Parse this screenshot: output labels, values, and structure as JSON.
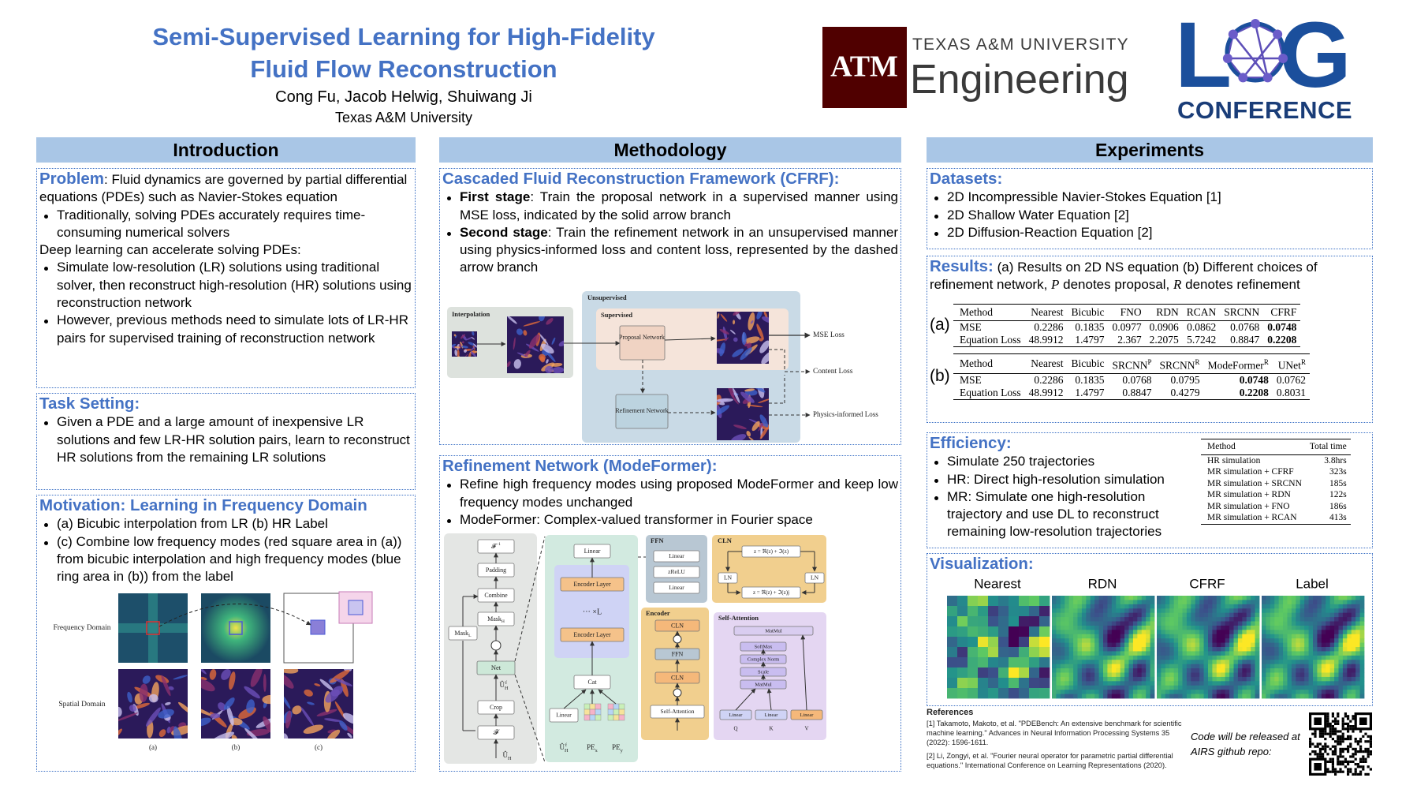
{
  "header": {
    "title": [
      "Semi-Supervised Learning for High-Fidelity",
      "Fluid Flow Reconstruction"
    ],
    "authors": "Cong Fu, Jacob Helwig, Shuiwang Ji",
    "affiliation": "Texas A&M University",
    "tamu_logo": {
      "mark": "ATM",
      "line1": "TEXAS A&M UNIVERSITY",
      "line2": "Engineering"
    },
    "log_logo": {
      "letters": [
        "L",
        "G"
      ],
      "sub": "CONFERENCE"
    }
  },
  "columns": [
    {
      "title": "Introduction",
      "boxes": [
        {
          "heading": "Problem",
          "lead": ": Fluid dynamics are governed by partial differential equations (PDEs) such as Navier-Stokes equation",
          "lines": [
            {
              "kind": "li",
              "text": "Traditionally, solving PDEs accurately requires time-consuming numerical solvers"
            },
            {
              "kind": "p",
              "text": "Deep learning can accelerate solving PDEs:"
            },
            {
              "kind": "li",
              "text": "Simulate low-resolution (LR) solutions using traditional solver, then reconstruct high-resolution (HR) solutions using reconstruction network"
            },
            {
              "kind": "li",
              "text": "However, previous methods need to simulate lots of LR-HR pairs for supervised training of reconstruction network"
            }
          ]
        },
        {
          "heading": "Task Setting:",
          "lines": [
            {
              "kind": "li",
              "text": "Given a PDE and a large amount of inexpensive LR solutions and few LR-HR solution pairs, learn to reconstruct HR solutions from the remaining LR solutions"
            }
          ]
        },
        {
          "heading": "Motivation: Learning in Frequency Domain",
          "lines": [
            {
              "kind": "li",
              "text": "(a) Bicubic interpolation from LR  (b) HR Label"
            },
            {
              "kind": "li",
              "text": "(c) Combine low frequency modes (red square area in (a)) from bicubic interpolation and high frequency modes (blue ring area in (b)) from the label"
            }
          ],
          "figure": {
            "kind": "motivation",
            "frequency": "Frequency Domain",
            "spatial": "Spatial Domain",
            "captions": [
              "(a)",
              "(b)",
              "(c)"
            ]
          }
        }
      ]
    },
    {
      "title": "Methodology",
      "boxes": [
        {
          "heading": "Cascaded Fluid Reconstruction Framework (CFRF):",
          "lines": [
            {
              "kind": "li",
              "bold": "First stage",
              "text": ": Train the proposal network in a supervised manner using MSE loss, indicated by the solid arrow branch"
            },
            {
              "kind": "li",
              "bold": "Second stage",
              "text": ": Train the refinement network in an unsupervised manner using physics-informed loss and content loss, represented by the dashed arrow branch"
            }
          ],
          "figure": {
            "kind": "cfrf",
            "interpolation": "Interpolation",
            "unsupervised": "Unsupervised",
            "supervised": "Supervised",
            "proposal": "Proposal Network",
            "refinement": "Refinement Network",
            "mse": "MSE Loss",
            "content": "Content Loss",
            "physics": "Physics-informed Loss"
          }
        },
        {
          "heading": "Refinement Network (ModeFormer):",
          "lines": [
            {
              "kind": "li",
              "text": "Refine high frequency modes using proposed ModeFormer and keep low frequency modes unchanged"
            },
            {
              "kind": "li",
              "text": "ModeFormer: Complex-valued transformer in Fourier space"
            }
          ],
          "figure": {
            "kind": "modeformer",
            "ifft": {
              "text": "𝓕",
              "sup": "−1"
            },
            "padding": "Padding",
            "combine": "Combine",
            "mask_h": {
              "text": "Mask",
              "sub": "H"
            },
            "mask_l": {
              "text": "Mask",
              "sub": "L"
            },
            "net": "Net",
            "crop": "Crop",
            "fft": "𝓕",
            "u_hat": {
              "text": "Û",
              "sub": "H"
            },
            "u_hat_f": {
              "text": "Û",
              "sub": "H",
              "sup": "f"
            },
            "linear": "Linear",
            "encoder_layer": "Encoder Layer",
            "times_l": "··· ×L",
            "cat": "Cat",
            "pe_x": {
              "text": "PE",
              "sub": "x"
            },
            "pe_y": {
              "text": "PE",
              "sub": "y"
            },
            "ffn": "FFN",
            "zrelu": "zReLU",
            "cln": "CLN",
            "encoder": "Encoder",
            "self_attention": "Self-Attention",
            "matmul": "MatMul",
            "softmax": "SoftMax",
            "complex_norm": "Complex Norm",
            "scale": "Scale",
            "ln": "LN",
            "cln_eq1": "z = ℜ(z) + ℑ(z)",
            "cln_eq2": "z = ℜ(z) + ℑ(z)j",
            "q": "Q",
            "k": "K",
            "v": "V"
          }
        }
      ]
    },
    {
      "title": "Experiments",
      "boxes": [
        {
          "heading": "Datasets:",
          "lines": [
            {
              "kind": "li",
              "text": "2D Incompressible Navier-Stokes Equation [1]"
            },
            {
              "kind": "li",
              "text": "2D Shallow Water Equation [2]"
            },
            {
              "kind": "li",
              "text": "2D Diffusion-Reaction Equation [2]"
            }
          ]
        },
        {
          "heading": "Results:",
          "lead": [
            " (a) Results on 2D NS equation (b) Different choices of refinement network, ",
            "P",
            " denotes proposal, ",
            "R",
            " denotes refinement"
          ],
          "tables": [
            {
              "label": "(a)",
              "header": [
                "Method",
                "Nearest",
                "Bicubic",
                "FNO",
                "RDN",
                "RCAN",
                "SRCNN",
                "CFRF"
              ],
              "rows": [
                [
                  "MSE",
                  "0.2286",
                  "0.1835",
                  "0.0977",
                  "0.0906",
                  "0.0862",
                  "0.0768",
                  {
                    "text": "0.0748",
                    "bold": true
                  }
                ],
                [
                  "Equation Loss",
                  "48.9912",
                  "1.4797",
                  "2.367",
                  "2.2075",
                  "5.7242",
                  "0.8847",
                  {
                    "text": "0.2208",
                    "bold": true
                  }
                ]
              ]
            },
            {
              "label": "(b)",
              "header": [
                "Method",
                "Nearest",
                "Bicubic",
                {
                  "text": "SRCNN",
                  "sup": "P"
                },
                {
                  "text": "SRCNN",
                  "sup": "R"
                },
                {
                  "text": "ModeFormer",
                  "sup": "R"
                },
                {
                  "text": "UNet",
                  "sup": "R"
                }
              ],
              "rows": [
                [
                  "MSE",
                  "0.2286",
                  "0.1835",
                  "0.0768",
                  "0.0795",
                  {
                    "text": "0.0748",
                    "bold": true
                  },
                  "0.0762"
                ],
                [
                  "Equation Loss",
                  "48.9912",
                  "1.4797",
                  "0.8847",
                  "0.4279",
                  {
                    "text": "0.2208",
                    "bold": true
                  },
                  "0.8031"
                ]
              ]
            }
          ]
        },
        {
          "heading": "Efficiency:",
          "lines": [
            {
              "kind": "li",
              "text": "Simulate 250 trajectories"
            },
            {
              "kind": "li",
              "text": "HR: Direct high-resolution simulation"
            },
            {
              "kind": "li",
              "text": "MR: Simulate one high-resolution trajectory and use DL to reconstruct remaining low-resolution trajectories"
            }
          ],
          "table": {
            "header": [
              "Method",
              "Total time"
            ],
            "rows": [
              [
                "HR simulation",
                "3.8hrs"
              ],
              [
                "MR simulation + CFRF",
                "323s"
              ],
              [
                "MR simulation + SRCNN",
                "185s"
              ],
              [
                "MR simulation + RDN",
                "122s"
              ],
              [
                "MR simulation + FNO",
                "186s"
              ],
              [
                "MR simulation + RCAN",
                "413s"
              ]
            ]
          }
        },
        {
          "heading": "Visualization:",
          "labels": [
            "Nearest",
            "RDN",
            "CFRF",
            "Label"
          ]
        }
      ],
      "references": {
        "heading": "References",
        "items": [
          "[1] Takamoto, Makoto, et al. \"PDEBench: An extensive benchmark for scientific machine learning.\" Advances in Neural Information Processing Systems 35 (2022): 1596-1611.",
          "[2] Li, Zongyi, et al. \"Fourier neural operator for parametric partial differential equations.\" International Conference on Learning Representations (2020)."
        ],
        "code_note": "Code will be released at AIRS github repo:"
      }
    }
  ]
}
